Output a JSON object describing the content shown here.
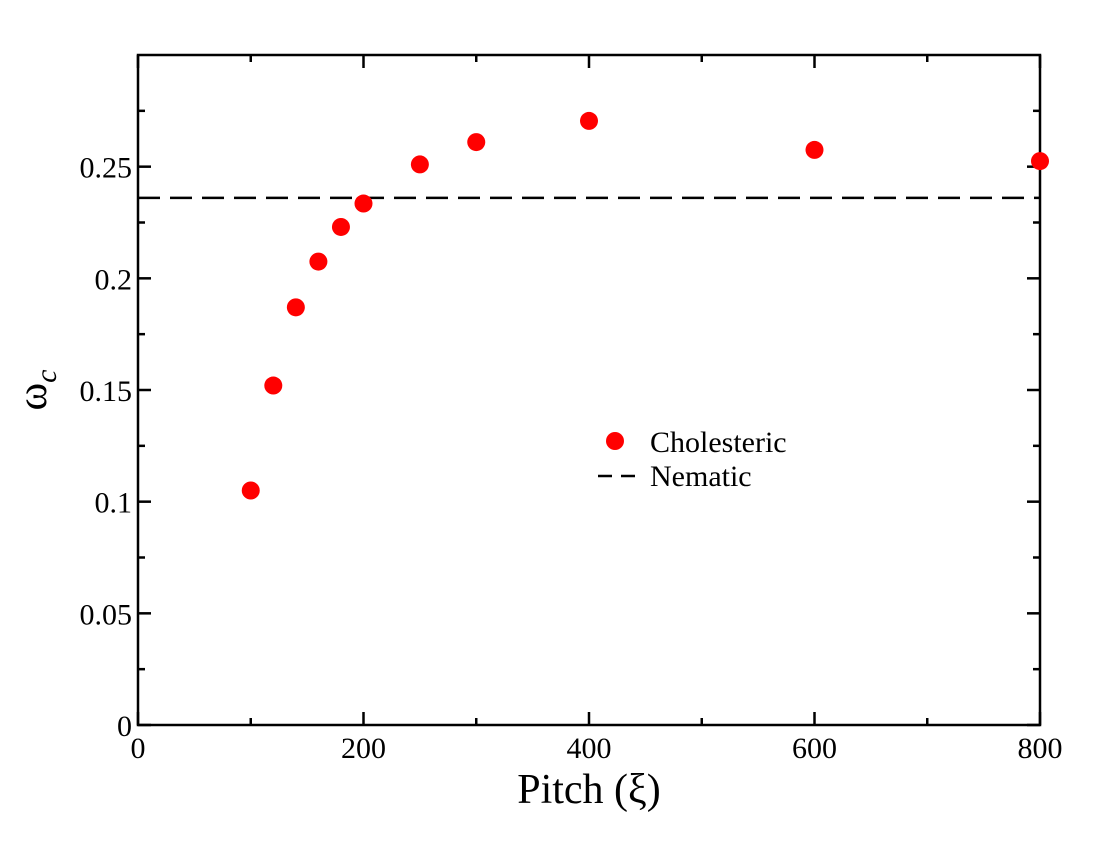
{
  "chart_data": {
    "type": "scatter",
    "title": "",
    "xlabel": "Pitch (ξ)",
    "ylabel_symbol": "ω",
    "ylabel_subscript": "c",
    "xlim": [
      0,
      800
    ],
    "ylim": [
      0,
      0.3
    ],
    "xticks": [
      0,
      200,
      400,
      600,
      800
    ],
    "xtick_labels": [
      "0",
      "200",
      "400",
      "600",
      "800"
    ],
    "x_minor_ticks": [
      100,
      300,
      500,
      700
    ],
    "yticks": [
      0,
      0.05,
      0.1,
      0.15,
      0.2,
      0.25
    ],
    "ytick_labels": [
      "0",
      "0.05",
      "0.1",
      "0.15",
      "0.2",
      "0.25"
    ],
    "y_minor_ticks": [
      0.025,
      0.075,
      0.125,
      0.175,
      0.225,
      0.275
    ],
    "grid": false,
    "legend_position": "center-right",
    "series": [
      {
        "name": "Cholesteric",
        "kind": "scatter",
        "color": "#ff0000",
        "x": [
          100,
          120,
          140,
          160,
          180,
          200,
          250,
          300,
          400,
          600,
          800
        ],
        "y": [
          0.105,
          0.152,
          0.187,
          0.2075,
          0.223,
          0.2335,
          0.251,
          0.261,
          0.2705,
          0.2575,
          0.2525
        ]
      },
      {
        "name": "Nematic",
        "kind": "hline",
        "color": "#000000",
        "y": 0.236
      }
    ]
  }
}
